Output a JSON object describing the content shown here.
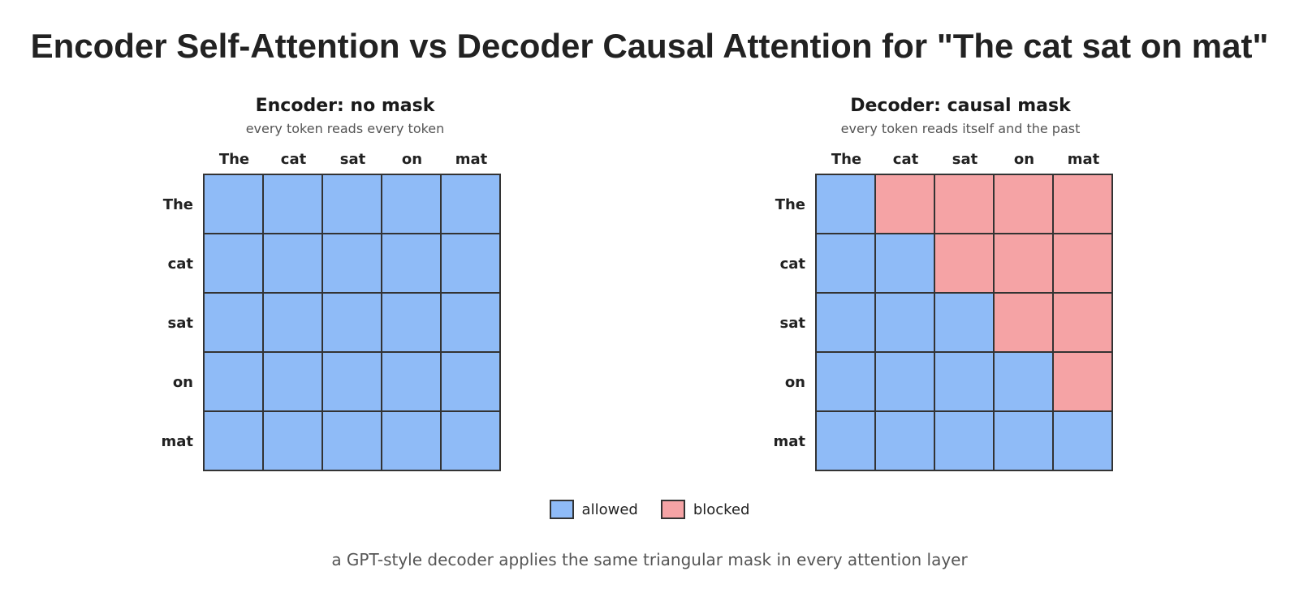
{
  "title": "Encoder Self-Attention vs Decoder Causal Attention for \"The cat sat on mat\"",
  "tokens": [
    "The",
    "cat",
    "sat",
    "on",
    "mat"
  ],
  "panels": [
    {
      "title": "Encoder: no mask",
      "subtitle": "every token reads every token",
      "mask": [
        [
          1,
          1,
          1,
          1,
          1
        ],
        [
          1,
          1,
          1,
          1,
          1
        ],
        [
          1,
          1,
          1,
          1,
          1
        ],
        [
          1,
          1,
          1,
          1,
          1
        ],
        [
          1,
          1,
          1,
          1,
          1
        ]
      ]
    },
    {
      "title": "Decoder: causal mask",
      "subtitle": "every token reads itself and the past",
      "mask": [
        [
          1,
          0,
          0,
          0,
          0
        ],
        [
          1,
          1,
          0,
          0,
          0
        ],
        [
          1,
          1,
          1,
          0,
          0
        ],
        [
          1,
          1,
          1,
          1,
          0
        ],
        [
          1,
          1,
          1,
          1,
          1
        ]
      ]
    }
  ],
  "legend": {
    "allowed_label": "allowed",
    "blocked_label": "blocked"
  },
  "colors": {
    "allowed": "#8fbbf7",
    "blocked": "#f5a3a5",
    "grid_line": "#333333"
  },
  "footnote": "a GPT-style decoder applies the same triangular mask in every attention layer"
}
